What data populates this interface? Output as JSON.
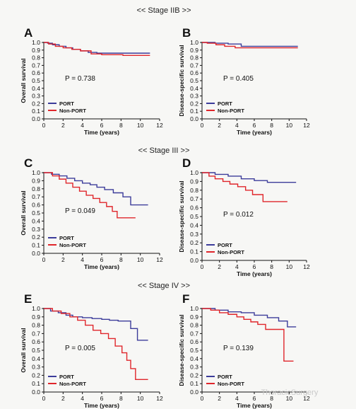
{
  "stage_headers": [
    "<< Stage IIB >>",
    "<< Stage III >>",
    "<< Stage IV >>"
  ],
  "watermark": "ThoracicSurgery",
  "colors": {
    "port": "#3c3c9a",
    "nonport": "#e0262b"
  },
  "chart_data": [
    {
      "type": "line",
      "panel": "A",
      "ylabel": "Overall survival",
      "xlabel": "Time (years)",
      "xlim": [
        0,
        12
      ],
      "ylim": [
        0,
        1.0
      ],
      "xticks": [
        "0",
        "2",
        "4",
        "6",
        "8",
        "10",
        "12"
      ],
      "yticks": [
        "0.0",
        "0.1",
        "0.2",
        "0.3",
        "0.4",
        "0.5",
        "0.6",
        "0.7",
        "0.8",
        "0.9",
        "1.0"
      ],
      "p_value": "P = 0.738",
      "legend": "bottom-left",
      "series": [
        {
          "name": "PORT",
          "color": "#3c3c9a",
          "x": [
            0,
            0.4,
            0.9,
            1.6,
            2.3,
            3.0,
            3.8,
            4.6,
            5.5,
            11
          ],
          "y": [
            1.0,
            0.99,
            0.97,
            0.95,
            0.93,
            0.91,
            0.89,
            0.87,
            0.86,
            0.86
          ]
        },
        {
          "name": "Non-PORT",
          "color": "#e0262b",
          "x": [
            0,
            0.5,
            1.2,
            2.0,
            2.9,
            3.8,
            4.9,
            6.0,
            8.2,
            11
          ],
          "y": [
            1.0,
            0.98,
            0.95,
            0.93,
            0.91,
            0.89,
            0.85,
            0.84,
            0.83,
            0.83
          ]
        }
      ]
    },
    {
      "type": "line",
      "panel": "B",
      "ylabel": "Disease-specific survival",
      "xlabel": "Time (years)",
      "xlim": [
        0,
        12
      ],
      "ylim": [
        0,
        1.0
      ],
      "xticks": [
        "0",
        "2",
        "4",
        "6",
        "8",
        "10",
        "12"
      ],
      "yticks": [
        "0.0",
        "0.1",
        "0.2",
        "0.3",
        "0.4",
        "0.5",
        "0.6",
        "0.7",
        "0.8",
        "0.9",
        "1.0"
      ],
      "p_value": "P = 0.405",
      "legend": "bottom-left",
      "series": [
        {
          "name": "PORT",
          "color": "#3c3c9a",
          "x": [
            0,
            1.5,
            3.0,
            4.5,
            11
          ],
          "y": [
            1.0,
            0.99,
            0.98,
            0.95,
            0.95
          ]
        },
        {
          "name": "Non-PORT",
          "color": "#e0262b",
          "x": [
            0,
            0.6,
            1.6,
            2.6,
            3.8,
            5.0,
            11
          ],
          "y": [
            1.0,
            0.99,
            0.97,
            0.95,
            0.93,
            0.93,
            0.93
          ]
        }
      ]
    },
    {
      "type": "line",
      "panel": "C",
      "ylabel": "Overall survival",
      "xlabel": "Time (years)",
      "xlim": [
        0,
        12
      ],
      "ylim": [
        0,
        1.0
      ],
      "xticks": [
        "0",
        "2",
        "4",
        "6",
        "8",
        "10",
        "12"
      ],
      "yticks": [
        "0.0",
        "0.1",
        "0.2",
        "0.3",
        "0.4",
        "0.5",
        "0.6",
        "0.7",
        "0.8",
        "0.9",
        "1.0"
      ],
      "p_value": "P = 0.049",
      "legend": "bottom-left",
      "series": [
        {
          "name": "PORT",
          "color": "#3c3c9a",
          "x": [
            0,
            0.8,
            1.6,
            2.4,
            3.2,
            4.0,
            4.8,
            5.5,
            6.3,
            7.2,
            8.2,
            9.0,
            10.8
          ],
          "y": [
            1.0,
            0.98,
            0.96,
            0.93,
            0.9,
            0.87,
            0.85,
            0.82,
            0.79,
            0.75,
            0.7,
            0.6,
            0.6
          ]
        },
        {
          "name": "Non-PORT",
          "color": "#e0262b",
          "x": [
            0,
            0.9,
            1.6,
            2.3,
            3.0,
            3.7,
            4.4,
            5.1,
            5.8,
            6.5,
            7.1,
            7.6,
            9.5
          ],
          "y": [
            1.0,
            0.96,
            0.92,
            0.87,
            0.82,
            0.77,
            0.72,
            0.68,
            0.63,
            0.58,
            0.52,
            0.44,
            0.44
          ]
        }
      ]
    },
    {
      "type": "line",
      "panel": "D",
      "ylabel": "Disease-specific survival",
      "xlabel": "Time (years)",
      "xlim": [
        0,
        12
      ],
      "ylim": [
        0,
        1.0
      ],
      "xticks": [
        "0",
        "2",
        "4",
        "6",
        "8",
        "10",
        "12"
      ],
      "yticks": [
        "0.0",
        "0.1",
        "0.2",
        "0.3",
        "0.4",
        "0.5",
        "0.6",
        "0.7",
        "0.8",
        "0.9",
        "1.0"
      ],
      "p_value": "P = 0.012",
      "legend": "bottom-left",
      "series": [
        {
          "name": "PORT",
          "color": "#3c3c9a",
          "x": [
            0,
            1.5,
            3.0,
            4.5,
            6.0,
            7.5,
            10.8
          ],
          "y": [
            1.0,
            0.98,
            0.96,
            0.93,
            0.91,
            0.89,
            0.89
          ]
        },
        {
          "name": "Non-PORT",
          "color": "#e0262b",
          "x": [
            0,
            0.8,
            1.5,
            2.4,
            3.2,
            4.1,
            5.0,
            5.8,
            7.0,
            9.8
          ],
          "y": [
            1.0,
            0.96,
            0.93,
            0.9,
            0.87,
            0.84,
            0.8,
            0.75,
            0.67,
            0.67
          ]
        }
      ]
    },
    {
      "type": "line",
      "panel": "E",
      "ylabel": "Overall survival",
      "xlabel": "Time (years)",
      "xlim": [
        0,
        12
      ],
      "ylim": [
        0,
        1.0
      ],
      "xticks": [
        "0",
        "2",
        "4",
        "6",
        "8",
        "10",
        "12"
      ],
      "yticks": [
        "0.0",
        "0.1",
        "0.2",
        "0.3",
        "0.4",
        "0.5",
        "0.6",
        "0.7",
        "0.8",
        "0.9",
        "1.0"
      ],
      "p_value": "P = 0.005",
      "legend": "bottom-left",
      "series": [
        {
          "name": "PORT",
          "color": "#3c3c9a",
          "x": [
            0,
            0.7,
            1.5,
            2.3,
            3.0,
            4.0,
            5.0,
            6.0,
            6.8,
            7.7,
            9.0,
            9.7,
            10.8
          ],
          "y": [
            1.0,
            0.97,
            0.95,
            0.92,
            0.9,
            0.89,
            0.88,
            0.87,
            0.86,
            0.85,
            0.76,
            0.62,
            0.62
          ]
        },
        {
          "name": "Non-PORT",
          "color": "#e0262b",
          "x": [
            0,
            0.9,
            1.8,
            2.7,
            3.5,
            4.3,
            5.1,
            5.9,
            6.7,
            7.4,
            8.1,
            8.6,
            9.0,
            9.5,
            10.8
          ],
          "y": [
            1.0,
            0.97,
            0.94,
            0.9,
            0.86,
            0.8,
            0.74,
            0.7,
            0.64,
            0.55,
            0.47,
            0.38,
            0.28,
            0.15,
            0.15
          ]
        }
      ]
    },
    {
      "type": "line",
      "panel": "F",
      "ylabel": "Disease-specific survival",
      "xlabel": "Time (years)",
      "xlim": [
        0,
        12
      ],
      "ylim": [
        0,
        1.0
      ],
      "xticks": [
        "0",
        "2",
        "4",
        "6",
        "8",
        "10",
        "12"
      ],
      "yticks": [
        "0.0",
        "0.1",
        "0.2",
        "0.3",
        "0.4",
        "0.5",
        "0.6",
        "0.7",
        "0.8",
        "0.9",
        "1.0"
      ],
      "p_value": "P = 0.139",
      "legend": "bottom-left",
      "series": [
        {
          "name": "PORT",
          "color": "#3c3c9a",
          "x": [
            0,
            1.5,
            3.0,
            4.5,
            6.0,
            7.5,
            8.8,
            9.8,
            10.8
          ],
          "y": [
            1.0,
            0.98,
            0.96,
            0.95,
            0.92,
            0.89,
            0.85,
            0.78,
            0.78
          ]
        },
        {
          "name": "Non-PORT",
          "color": "#e0262b",
          "x": [
            0,
            1.0,
            2.0,
            3.0,
            4.0,
            4.8,
            5.6,
            6.4,
            7.3,
            8.5,
            9.4,
            10.5
          ],
          "y": [
            1.0,
            0.98,
            0.95,
            0.93,
            0.9,
            0.87,
            0.84,
            0.81,
            0.75,
            0.75,
            0.37,
            0.37
          ]
        }
      ]
    }
  ]
}
